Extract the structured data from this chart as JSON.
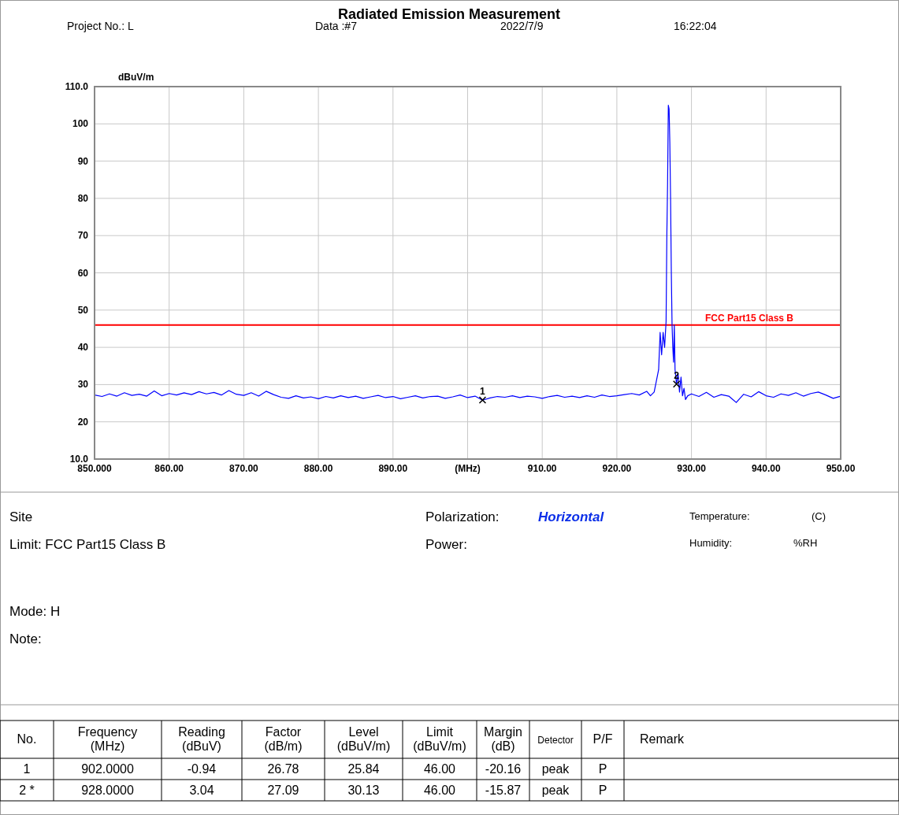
{
  "chart_data": {
    "type": "line",
    "title": "Radiated Emission Measurement",
    "ylabel": "dBuV/m",
    "xlabel": "(MHz)",
    "xlim": [
      850,
      950
    ],
    "xticks": [
      {
        "value": 850,
        "label": "850.000"
      },
      {
        "value": 860,
        "label": "860.00"
      },
      {
        "value": 870,
        "label": "870.00"
      },
      {
        "value": 880,
        "label": "880.00"
      },
      {
        "value": 890,
        "label": "890.00"
      },
      {
        "value": 900,
        "label": null
      },
      {
        "value": 910,
        "label": "910.00"
      },
      {
        "value": 920,
        "label": "920.00"
      },
      {
        "value": 930,
        "label": "930.00"
      },
      {
        "value": 940,
        "label": "940.00"
      },
      {
        "value": 950,
        "label": "950.00"
      }
    ],
    "ylim": [
      10,
      110
    ],
    "yticks": [
      {
        "value": 10,
        "label": "10.0"
      },
      20,
      30,
      40,
      50,
      60,
      70,
      80,
      90,
      100,
      {
        "value": 110,
        "label": "110.0"
      }
    ],
    "grid": true,
    "marker": "none",
    "line_style": "solid",
    "series": [
      {
        "color": "#0000ff",
        "x": [
          850,
          851,
          852,
          853,
          854,
          855,
          856,
          857,
          858,
          859,
          860,
          861,
          862,
          863,
          864,
          865,
          866,
          867,
          868,
          869,
          870,
          871,
          872,
          873,
          874,
          875,
          876,
          877,
          878,
          879,
          880,
          881,
          882,
          883,
          884,
          885,
          886,
          887,
          888,
          889,
          890,
          891,
          892,
          893,
          894,
          895,
          896,
          897,
          898,
          899,
          900,
          901,
          902,
          903,
          904,
          905,
          906,
          907,
          908,
          909,
          910,
          911,
          912,
          913,
          914,
          915,
          916,
          917,
          918,
          919,
          920,
          921,
          922,
          923,
          924,
          924.5,
          925,
          925.3,
          925.6,
          925.8,
          926,
          926.2,
          926.4,
          926.6,
          926.7,
          926.8,
          926.9,
          927,
          927.1,
          927.2,
          927.3,
          927.4,
          927.5,
          927.6,
          927.7,
          927.8,
          928,
          928.2,
          928.4,
          928.6,
          928.8,
          929,
          929.2,
          929.5,
          930,
          931,
          932,
          933,
          934,
          935,
          936,
          937,
          938,
          939,
          940,
          941,
          942,
          943,
          944,
          945,
          946,
          947,
          948,
          949,
          950
        ],
        "values": [
          27.2,
          26.8,
          27.5,
          26.9,
          27.8,
          27.1,
          27.4,
          26.9,
          28.3,
          27.0,
          27.6,
          27.2,
          27.8,
          27.3,
          28.1,
          27.5,
          27.9,
          27.2,
          28.4,
          27.4,
          27.1,
          27.8,
          26.9,
          28.2,
          27.3,
          26.6,
          26.3,
          27.0,
          26.4,
          26.7,
          26.2,
          26.8,
          26.4,
          27.0,
          26.5,
          26.9,
          26.3,
          26.7,
          27.1,
          26.5,
          26.8,
          26.2,
          26.6,
          27.0,
          26.4,
          26.8,
          26.9,
          26.3,
          26.7,
          27.2,
          26.5,
          26.9,
          25.8,
          26.4,
          26.8,
          26.6,
          27.0,
          26.5,
          26.9,
          26.7,
          26.3,
          26.8,
          27.1,
          26.6,
          26.9,
          26.5,
          27.0,
          26.6,
          27.2,
          26.8,
          27.0,
          27.3,
          27.6,
          27.2,
          28.2,
          27,
          28,
          31,
          34,
          44,
          38,
          44,
          40,
          47,
          70,
          84,
          105,
          104,
          95,
          80,
          60,
          46,
          40,
          36,
          46,
          34,
          30,
          33,
          28,
          32,
          27,
          29,
          26,
          27,
          27.5,
          26.8,
          27.9,
          26.6,
          27.3,
          26.9,
          25.2,
          27.4,
          26.7,
          28.1,
          27.0,
          26.6,
          27.5,
          27.1,
          27.8,
          26.9,
          27.6,
          28.0,
          27.2,
          26.3,
          26.9
        ]
      }
    ],
    "ref_lines": [
      {
        "axis": "y",
        "value": 46,
        "label": "FCC Part15 Class B",
        "color": "#ff0000"
      }
    ],
    "annotations": [
      {
        "text": "1",
        "x": 902,
        "y": 25.84
      },
      {
        "text": "2",
        "x": 928,
        "y": 30.13
      },
      "Project No.: L",
      "Data :#7",
      "2022/7/9",
      "16:22:04",
      "Site",
      "Polarization:",
      "Horizontal",
      "Temperature:",
      "(C)",
      "Limit: FCC Part15 Class B",
      "Power:",
      "Humidity:",
      "%RH",
      "Mode: H",
      "Note:",
      "No.",
      "Frequency\n(MHz)",
      "Reading\n(dBuV)",
      "Factor\n(dB/m)",
      "Level\n(dBuV/m)",
      "Limit\n(dBuV/m)",
      "Margin\n(dB)",
      "Detector",
      "P/F",
      "Remark",
      "1",
      "902.0000",
      "-0.94",
      "26.78",
      "25.84",
      "46.00",
      "-20.16",
      "peak",
      "P",
      "2  *",
      "928.0000",
      "3.04",
      "27.09",
      "30.13",
      "46.00",
      "-15.87",
      "peak",
      "P"
    ]
  }
}
